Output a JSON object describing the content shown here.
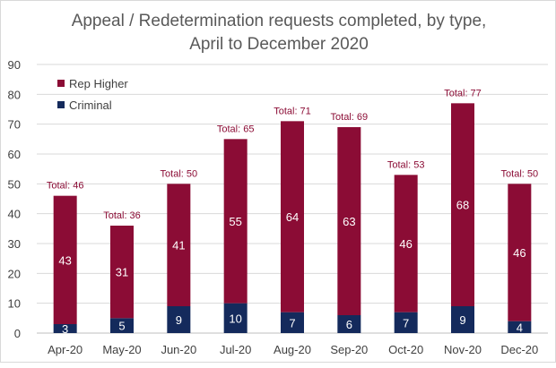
{
  "chart_data": {
    "type": "bar",
    "stacked": true,
    "title_line1": "Appeal / Redetermination requests completed, by type,",
    "title_line2": "April to December 2020",
    "xlabel": "",
    "ylabel": "",
    "ylim": [
      0,
      90
    ],
    "yticks": [
      "0",
      "10",
      "20",
      "30",
      "40",
      "50",
      "60",
      "70",
      "80",
      "90"
    ],
    "grid": true,
    "legend_position": "top-left",
    "categories": [
      "Apr-20",
      "May-20",
      "Jun-20",
      "Jul-20",
      "Aug-20",
      "Sep-20",
      "Oct-20",
      "Nov-20",
      "Dec-20"
    ],
    "series": [
      {
        "name": "Criminal",
        "color": "#142a5c",
        "values": [
          3,
          5,
          9,
          10,
          7,
          6,
          7,
          9,
          4
        ]
      },
      {
        "name": "Rep Higher",
        "color": "#8b0c35",
        "values": [
          43,
          31,
          41,
          55,
          64,
          63,
          46,
          68,
          46
        ]
      }
    ],
    "totals": [
      "Total: 46",
      "Total: 36",
      "Total: 50",
      "Total: 65",
      "Total: 71",
      "Total: 69",
      "Total: 53",
      "Total: 77",
      "Total: 50"
    ]
  }
}
